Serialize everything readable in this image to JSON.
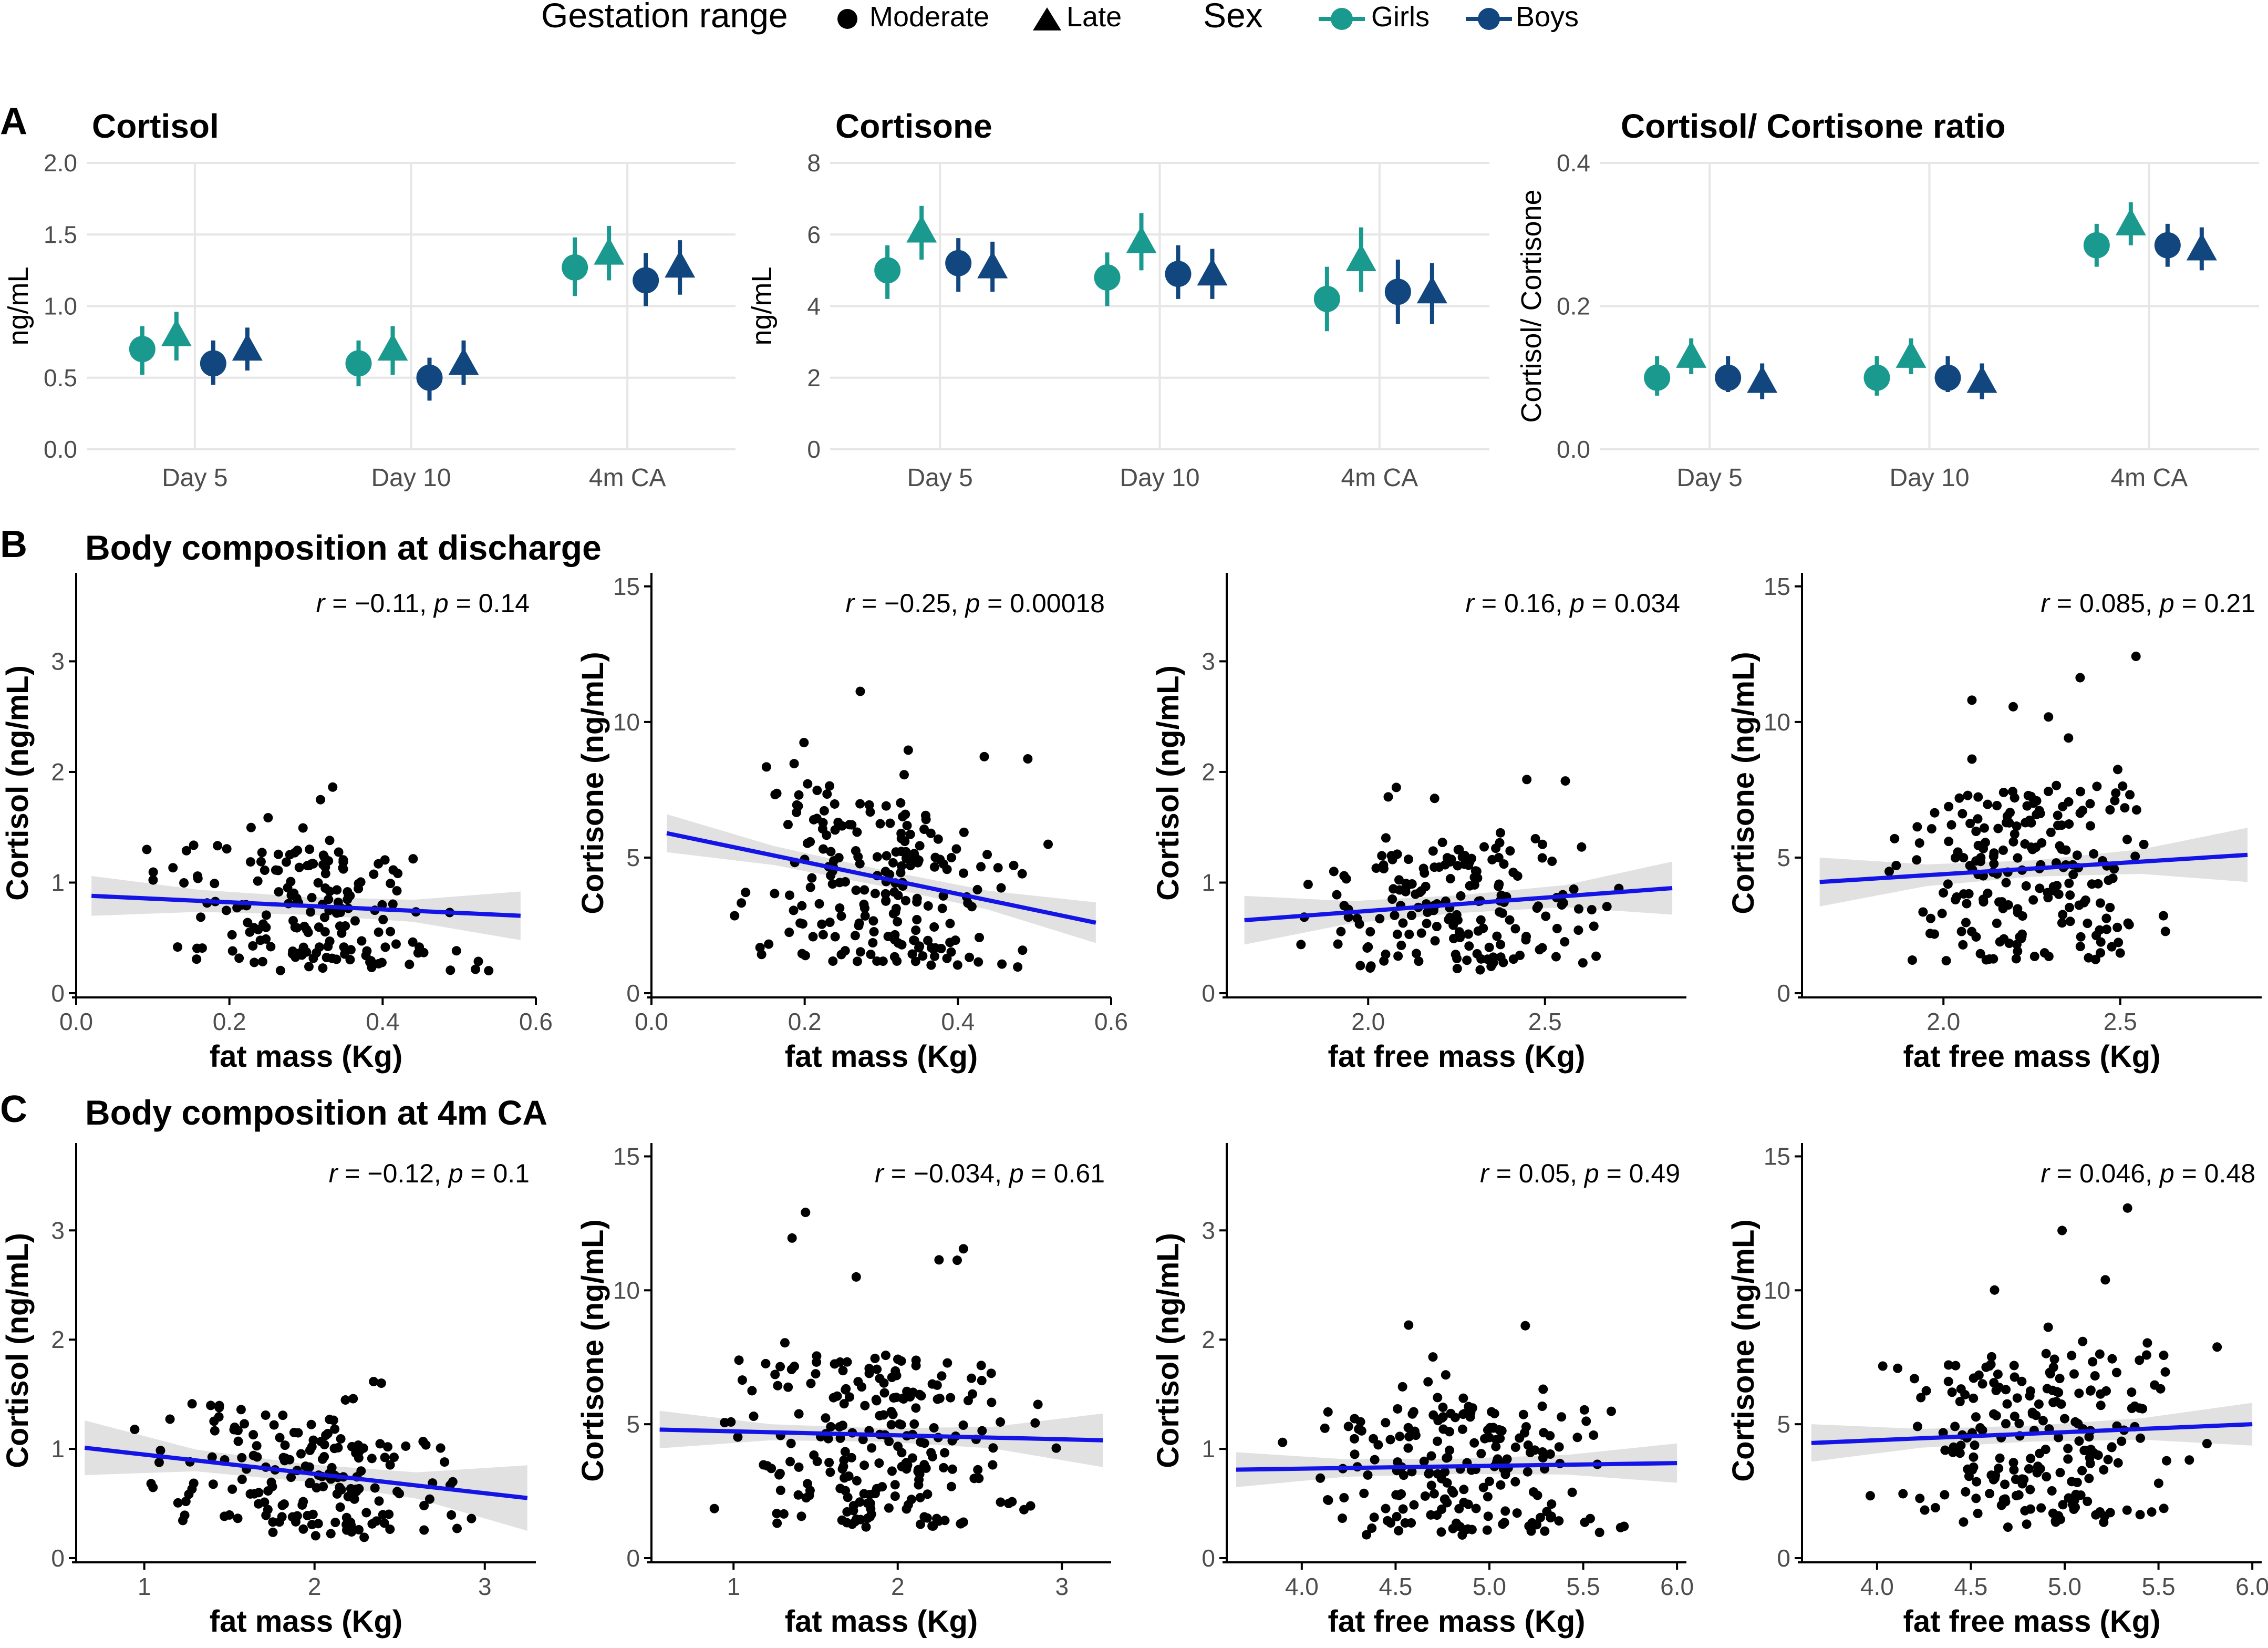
{
  "figure": {
    "panel_letters": [
      "A",
      "B",
      "C"
    ],
    "section_titles": {
      "B": "Body composition at discharge",
      "C": "Body composition at 4m CA"
    },
    "colors": {
      "girls": "#1a9a8e",
      "boys": "#11467f",
      "line": "#1414e6",
      "band": "#dcdcdc",
      "grid": "#e6e6e6",
      "points": "#000000",
      "axis": "#000000",
      "tick_text": "#4d4d4d"
    }
  },
  "legend": {
    "gestation_title": "Gestation range",
    "moderate_label": "Moderate",
    "late_label": "Late",
    "sex_title": "Sex",
    "girls_label": "Girls",
    "boys_label": "Boys"
  },
  "chart_data": [
    {
      "id": "A1",
      "type": "pointrange",
      "title": "Cortisol",
      "ylabel": "ng/mL",
      "categories": [
        "Day 5",
        "Day 10",
        "4m CA"
      ],
      "ylim": [
        0,
        2.0
      ],
      "yticks": [
        0.0,
        0.5,
        1.0,
        1.5,
        2.0
      ],
      "ytick_labels": [
        "0.0",
        "0.5",
        "1.0",
        "1.5",
        "2.0"
      ],
      "series": [
        {
          "name": "Girls, Moderate",
          "sex": "girls",
          "gestation": "Moderate",
          "values": [
            0.7,
            0.6,
            1.27
          ],
          "lower": [
            0.52,
            0.44,
            1.07
          ],
          "upper": [
            0.86,
            0.76,
            1.48
          ]
        },
        {
          "name": "Girls, Late",
          "sex": "girls",
          "gestation": "Late",
          "values": [
            0.8,
            0.7,
            1.37
          ],
          "lower": [
            0.62,
            0.52,
            1.18
          ],
          "upper": [
            0.96,
            0.86,
            1.56
          ]
        },
        {
          "name": "Boys, Moderate",
          "sex": "boys",
          "gestation": "Moderate",
          "values": [
            0.6,
            0.5,
            1.18
          ],
          "lower": [
            0.45,
            0.34,
            1.0
          ],
          "upper": [
            0.76,
            0.64,
            1.37
          ]
        },
        {
          "name": "Boys, Late",
          "sex": "boys",
          "gestation": "Late",
          "values": [
            0.7,
            0.6,
            1.28
          ],
          "lower": [
            0.55,
            0.45,
            1.08
          ],
          "upper": [
            0.85,
            0.76,
            1.46
          ]
        }
      ]
    },
    {
      "id": "A2",
      "type": "pointrange",
      "title": "Cortisone",
      "ylabel": "ng/mL",
      "categories": [
        "Day 5",
        "Day 10",
        "4m CA"
      ],
      "ylim": [
        0,
        8
      ],
      "yticks": [
        0,
        2,
        4,
        6,
        8
      ],
      "ytick_labels": [
        "0",
        "2",
        "4",
        "6",
        "8"
      ],
      "series": [
        {
          "name": "Girls, Moderate",
          "sex": "girls",
          "gestation": "Moderate",
          "values": [
            5.0,
            4.8,
            4.2
          ],
          "lower": [
            4.2,
            4.0,
            3.3
          ],
          "upper": [
            5.7,
            5.5,
            5.1
          ]
        },
        {
          "name": "Girls, Late",
          "sex": "girls",
          "gestation": "Late",
          "values": [
            6.1,
            5.8,
            5.3
          ],
          "lower": [
            5.3,
            5.0,
            4.4
          ],
          "upper": [
            6.8,
            6.6,
            6.2
          ]
        },
        {
          "name": "Boys, Moderate",
          "sex": "boys",
          "gestation": "Moderate",
          "values": [
            5.2,
            4.9,
            4.4
          ],
          "lower": [
            4.4,
            4.2,
            3.5
          ],
          "upper": [
            5.9,
            5.7,
            5.3
          ]
        },
        {
          "name": "Boys, Late",
          "sex": "boys",
          "gestation": "Late",
          "values": [
            5.1,
            4.9,
            4.4
          ],
          "lower": [
            4.4,
            4.2,
            3.5
          ],
          "upper": [
            5.8,
            5.6,
            5.2
          ]
        }
      ]
    },
    {
      "id": "A3",
      "type": "pointrange",
      "title": "Cortisol/ Cortisone ratio",
      "ylabel": "Cortisol/ Cortisone",
      "categories": [
        "Day 5",
        "Day 10",
        "4m CA"
      ],
      "ylim": [
        0,
        0.4
      ],
      "yticks": [
        0.0,
        0.2,
        0.4
      ],
      "ytick_labels": [
        "0.0",
        "0.2",
        "0.4"
      ],
      "series": [
        {
          "name": "Girls, Moderate",
          "sex": "girls",
          "gestation": "Moderate",
          "values": [
            0.1,
            0.1,
            0.285
          ],
          "lower": [
            0.075,
            0.075,
            0.255
          ],
          "upper": [
            0.13,
            0.13,
            0.315
          ]
        },
        {
          "name": "Girls, Late",
          "sex": "girls",
          "gestation": "Late",
          "values": [
            0.13,
            0.13,
            0.315
          ],
          "lower": [
            0.105,
            0.105,
            0.285
          ],
          "upper": [
            0.155,
            0.155,
            0.345
          ]
        },
        {
          "name": "Boys, Moderate",
          "sex": "boys",
          "gestation": "Moderate",
          "values": [
            0.1,
            0.1,
            0.285
          ],
          "lower": [
            0.08,
            0.08,
            0.255
          ],
          "upper": [
            0.13,
            0.13,
            0.315
          ]
        },
        {
          "name": "Boys, Late",
          "sex": "boys",
          "gestation": "Late",
          "values": [
            0.095,
            0.095,
            0.28
          ],
          "lower": [
            0.07,
            0.07,
            0.25
          ],
          "upper": [
            0.12,
            0.12,
            0.31
          ]
        }
      ]
    },
    {
      "id": "B1",
      "type": "scatter",
      "xlabel": "fat mass (Kg)",
      "ylabel": "Cortisol (ng/mL)",
      "xlim": [
        0.0,
        0.6
      ],
      "ylim": [
        0,
        3.8
      ],
      "xticks": [
        0.0,
        0.2,
        0.4,
        0.6
      ],
      "xtick_labels": [
        "0.0",
        "0.2",
        "0.4",
        "0.6"
      ],
      "yticks": [
        0,
        1,
        2,
        3
      ],
      "ytick_labels": [
        "0",
        "1",
        "2",
        "3"
      ],
      "n_points": 180,
      "regression": {
        "x": [
          0.02,
          0.58
        ],
        "y": [
          0.88,
          0.7
        ],
        "band": [
          0.18,
          0.1,
          0.08,
          0.1,
          0.22
        ]
      },
      "annotation": {
        "r": "−0.11",
        "p": "0.14"
      }
    },
    {
      "id": "B2",
      "type": "scatter",
      "xlabel": "fat mass (Kg)",
      "ylabel": "Cortisone (ng/mL)",
      "xlim": [
        0.0,
        0.6
      ],
      "ylim": [
        0,
        15.5
      ],
      "xticks": [
        0.0,
        0.2,
        0.4,
        0.6
      ],
      "xtick_labels": [
        "0.0",
        "0.2",
        "0.4",
        "0.6"
      ],
      "yticks": [
        0,
        5,
        10,
        15
      ],
      "ytick_labels": [
        "0",
        "5",
        "10",
        "15"
      ],
      "n_points": 210,
      "regression": {
        "x": [
          0.02,
          0.58
        ],
        "y": [
          5.9,
          2.6
        ],
        "band": [
          0.7,
          0.35,
          0.3,
          0.35,
          0.75
        ]
      },
      "annotation": {
        "r": "−0.25",
        "p": "0.00018"
      }
    },
    {
      "id": "B3",
      "type": "scatter",
      "xlabel": "fat free mass (Kg)",
      "ylabel": "Cortisol (ng/mL)",
      "xlim": [
        1.6,
        2.9
      ],
      "ylim": [
        0,
        3.8
      ],
      "xticks": [
        2.0,
        2.5
      ],
      "xtick_labels": [
        "2.0",
        "2.5"
      ],
      "yticks": [
        0,
        1,
        2,
        3
      ],
      "ytick_labels": [
        "0",
        "1",
        "2",
        "3"
      ],
      "n_points": 180,
      "regression": {
        "x": [
          1.65,
          2.86
        ],
        "y": [
          0.66,
          0.95
        ],
        "band": [
          0.22,
          0.1,
          0.08,
          0.1,
          0.24
        ]
      },
      "annotation": {
        "r": "0.16",
        "p": "0.034"
      }
    },
    {
      "id": "B4",
      "type": "scatter",
      "xlabel": "fat free mass (Kg)",
      "ylabel": "Cortisone (ng/mL)",
      "xlim": [
        1.6,
        2.9
      ],
      "ylim": [
        0,
        15.5
      ],
      "xticks": [
        2.0,
        2.5
      ],
      "xtick_labels": [
        "2.0",
        "2.5"
      ],
      "yticks": [
        0,
        5,
        10,
        15
      ],
      "ytick_labels": [
        "0",
        "5",
        "10",
        "15"
      ],
      "n_points": 210,
      "regression": {
        "x": [
          1.65,
          2.86
        ],
        "y": [
          4.1,
          5.1
        ],
        "band": [
          0.9,
          0.4,
          0.3,
          0.45,
          1.0
        ]
      },
      "annotation": {
        "r": "0.085",
        "p": "0.21"
      }
    },
    {
      "id": "C1",
      "type": "scatter",
      "xlabel": "fat mass (Kg)",
      "ylabel": "Cortisol (ng/mL)",
      "xlim": [
        0.6,
        3.3
      ],
      "ylim": [
        0,
        3.8
      ],
      "xticks": [
        1,
        2,
        3
      ],
      "xtick_labels": [
        "1",
        "2",
        "3"
      ],
      "yticks": [
        0,
        1,
        2,
        3
      ],
      "ytick_labels": [
        "0",
        "1",
        "2",
        "3"
      ],
      "n_points": 180,
      "regression": {
        "x": [
          0.65,
          3.25
        ],
        "y": [
          1.01,
          0.55
        ],
        "band": [
          0.25,
          0.1,
          0.08,
          0.12,
          0.3
        ]
      },
      "annotation": {
        "r": "−0.12",
        "p": "0.1"
      }
    },
    {
      "id": "C2",
      "type": "scatter",
      "xlabel": "fat mass (Kg)",
      "ylabel": "Cortisone (ng/mL)",
      "xlim": [
        0.5,
        3.3
      ],
      "ylim": [
        0,
        15.5
      ],
      "xticks": [
        1,
        2,
        3
      ],
      "xtick_labels": [
        "1",
        "2",
        "3"
      ],
      "yticks": [
        0,
        5,
        10,
        15
      ],
      "ytick_labels": [
        "0",
        "5",
        "10",
        "15"
      ],
      "n_points": 230,
      "regression": {
        "x": [
          0.55,
          3.25
        ],
        "y": [
          4.8,
          4.4
        ],
        "band": [
          0.7,
          0.3,
          0.25,
          0.4,
          1.0
        ]
      },
      "annotation": {
        "r": "−0.034",
        "p": "0.61"
      }
    },
    {
      "id": "C3",
      "type": "scatter",
      "xlabel": "fat free mass (Kg)",
      "ylabel": "Cortisol (ng/mL)",
      "xlim": [
        3.6,
        6.05
      ],
      "ylim": [
        0,
        3.8
      ],
      "xticks": [
        4.0,
        4.5,
        5.0,
        5.5,
        6.0
      ],
      "xtick_labels": [
        "4.0",
        "4.5",
        "5.0",
        "5.5",
        "6.0"
      ],
      "yticks": [
        0,
        1,
        2,
        3
      ],
      "ytick_labels": [
        "0",
        "1",
        "2",
        "3"
      ],
      "n_points": 200,
      "regression": {
        "x": [
          3.65,
          6.0
        ],
        "y": [
          0.81,
          0.87
        ],
        "band": [
          0.16,
          0.08,
          0.07,
          0.09,
          0.18
        ]
      },
      "annotation": {
        "r": "0.05",
        "p": "0.49"
      }
    },
    {
      "id": "C4",
      "type": "scatter",
      "xlabel": "fat free mass (Kg)",
      "ylabel": "Cortisone (ng/mL)",
      "xlim": [
        3.6,
        6.05
      ],
      "ylim": [
        0,
        15.5
      ],
      "xticks": [
        4.0,
        4.5,
        5.0,
        5.5,
        6.0
      ],
      "xtick_labels": [
        "4.0",
        "4.5",
        "5.0",
        "5.5",
        "6.0"
      ],
      "yticks": [
        0,
        5,
        10,
        15
      ],
      "ytick_labels": [
        "0",
        "5",
        "10",
        "15"
      ],
      "n_points": 220,
      "regression": {
        "x": [
          3.65,
          6.0
        ],
        "y": [
          4.3,
          5.0
        ],
        "band": [
          0.7,
          0.35,
          0.3,
          0.4,
          0.8
        ]
      },
      "annotation": {
        "r": "0.046",
        "p": "0.48"
      }
    }
  ]
}
